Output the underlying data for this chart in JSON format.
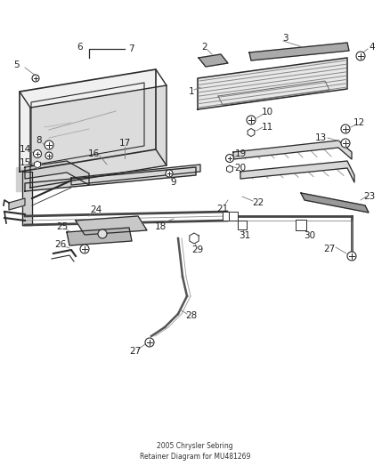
{
  "background_color": "#ffffff",
  "line_color": "#2a2a2a",
  "label_color": "#333333",
  "leader_color": "#777777",
  "fig_width": 4.38,
  "fig_height": 5.33,
  "dpi": 100
}
